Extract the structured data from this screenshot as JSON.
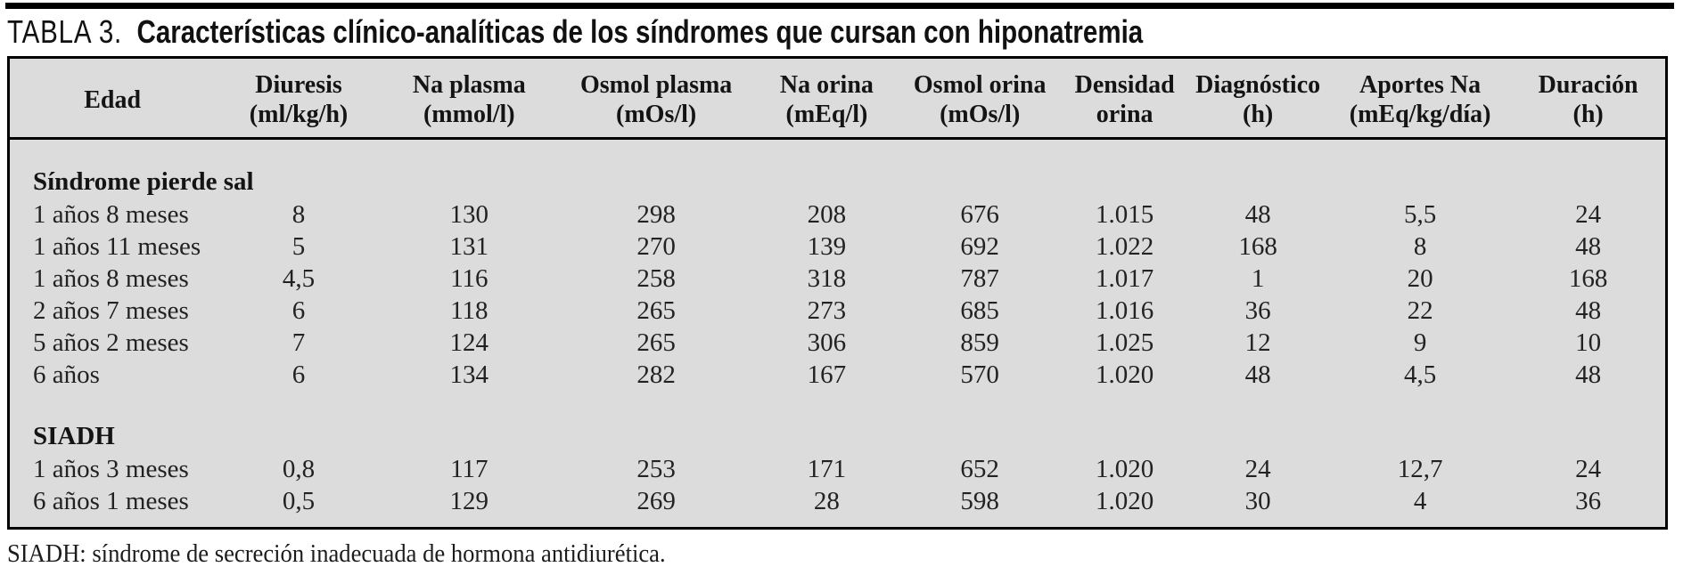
{
  "title": {
    "label": "TABLA 3.",
    "text": "Características clínico-analíticas de los síndromes que cursan con hiponatremia"
  },
  "table": {
    "columns": [
      {
        "key": "edad",
        "line1": "Edad",
        "line2": ""
      },
      {
        "key": "diuresis",
        "line1": "Diuresis",
        "line2": "(ml/kg/h)"
      },
      {
        "key": "na-plasma",
        "line1": "Na plasma",
        "line2": "(mmol/l)"
      },
      {
        "key": "osmol-plasma",
        "line1": "Osmol plasma",
        "line2": "(mOs/l)"
      },
      {
        "key": "na-orina",
        "line1": "Na orina",
        "line2": "(mEq/l)"
      },
      {
        "key": "osmol-orina",
        "line1": "Osmol orina",
        "line2": "(mOs/l)"
      },
      {
        "key": "densidad-orina",
        "line1": "Densidad",
        "line2": "orina"
      },
      {
        "key": "diagnostico",
        "line1": "Diagnóstico",
        "line2": "(h)"
      },
      {
        "key": "aportes-na",
        "line1": "Aportes Na",
        "line2": "(mEq/kg/día)"
      },
      {
        "key": "duracion",
        "line1": "Duración",
        "line2": "(h)"
      }
    ],
    "groups": [
      {
        "name": "Síndrome pierde sal",
        "rows": [
          [
            "1 años 8 meses",
            "8",
            "130",
            "298",
            "208",
            "676",
            "1.015",
            "48",
            "5,5",
            "24"
          ],
          [
            "1 años 11 meses",
            "5",
            "131",
            "270",
            "139",
            "692",
            "1.022",
            "168",
            "8",
            "48"
          ],
          [
            "1 años 8 meses",
            "4,5",
            "116",
            "258",
            "318",
            "787",
            "1.017",
            "1",
            "20",
            "168"
          ],
          [
            "2 años 7 meses",
            "6",
            "118",
            "265",
            "273",
            "685",
            "1.016",
            "36",
            "22",
            "48"
          ],
          [
            "5 años 2 meses",
            "7",
            "124",
            "265",
            "306",
            "859",
            "1.025",
            "12",
            "9",
            "10"
          ],
          [
            "6 años",
            "6",
            "134",
            "282",
            "167",
            "570",
            "1.020",
            "48",
            "4,5",
            "48"
          ]
        ]
      },
      {
        "name": "SIADH",
        "rows": [
          [
            "1 años 3 meses",
            "0,8",
            "117",
            "253",
            "171",
            "652",
            "1.020",
            "24",
            "12,7",
            "24"
          ],
          [
            "6 años 1 meses",
            "0,5",
            "129",
            "269",
            "28",
            "598",
            "1.020",
            "30",
            "4",
            "36"
          ]
        ]
      }
    ],
    "column_widths_pct": [
      12.4,
      10.1,
      10.5,
      12.1,
      8.5,
      10.0,
      7.5,
      8.6,
      11.0,
      9.3
    ]
  },
  "footnote": "SIADH: síndrome de secreción inadecuada de hormona antidiurética.",
  "colors": {
    "table_bg": "#dcdcdc",
    "rule": "#000000",
    "text": "#1c1c1c"
  }
}
